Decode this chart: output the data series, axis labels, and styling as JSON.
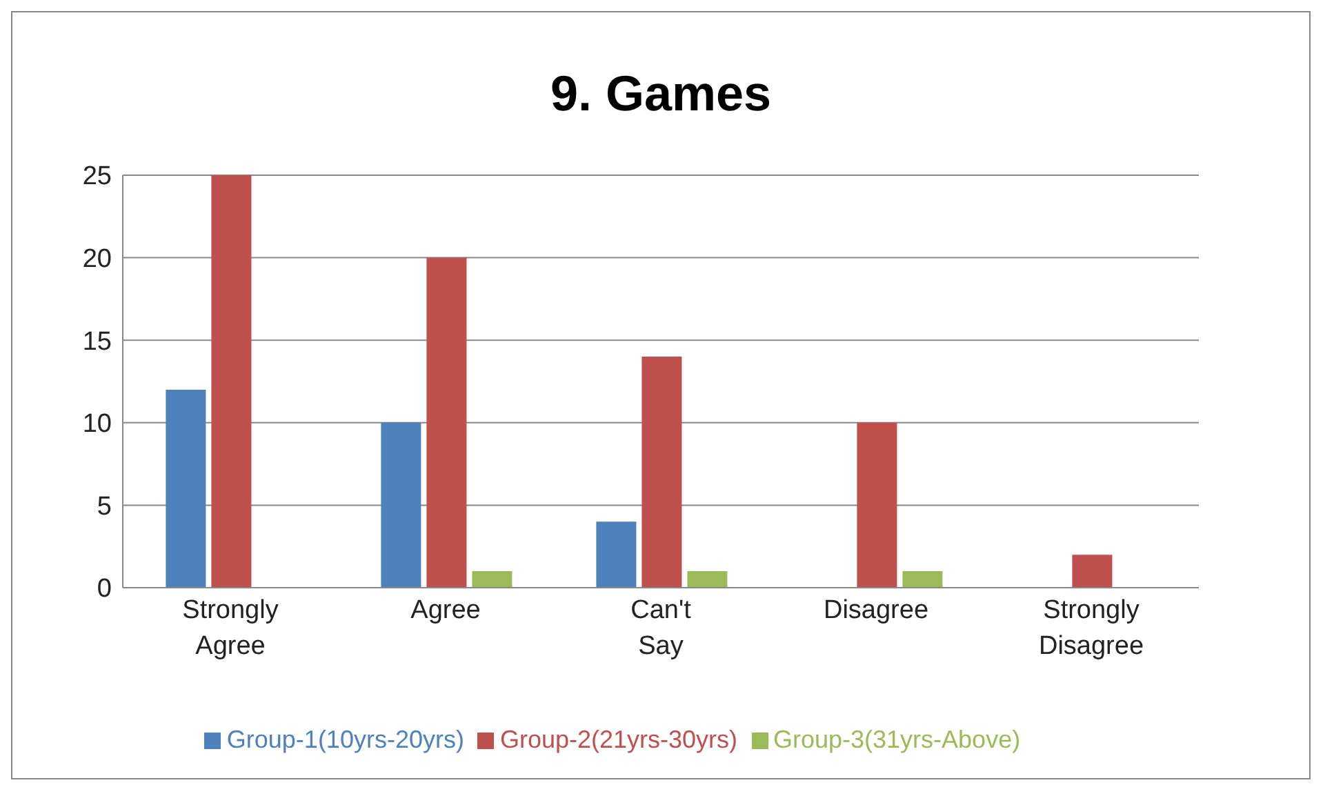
{
  "chart_data": {
    "type": "bar",
    "title": "9. Games",
    "categories": [
      "Strongly Agree",
      "Agree",
      "Can't Say",
      "Disagree",
      "Strongly Disagree"
    ],
    "series": [
      {
        "name": "Group-1(10yrs-20yrs)",
        "color": "#4f81bd",
        "values": [
          12,
          10,
          4,
          0,
          0
        ]
      },
      {
        "name": "Group-2(21yrs-30yrs)",
        "color": "#c0504d",
        "values": [
          25,
          20,
          14,
          10,
          2
        ]
      },
      {
        "name": "Group-3(31yrs-Above)",
        "color": "#9bbb59",
        "values": [
          0,
          1,
          1,
          1,
          0
        ]
      }
    ],
    "ylim": [
      0,
      25
    ],
    "yticks": [
      0,
      5,
      10,
      15,
      20,
      25
    ],
    "grid": "y",
    "legend": "bottom"
  }
}
